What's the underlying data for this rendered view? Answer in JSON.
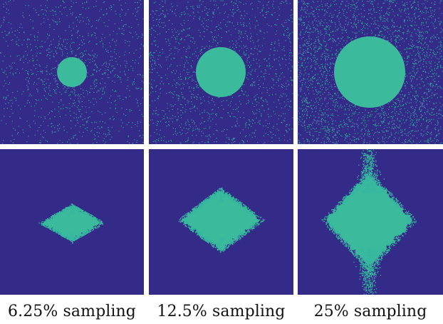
{
  "colors": {
    "background": "#342a88",
    "mask": "#3bba9c",
    "speckle": "#36b8a0"
  },
  "captions": {
    "col1": "6.25% sampling",
    "col2": "12.5% sampling",
    "col3": "25% sampling"
  },
  "panels": [
    {
      "row": "top",
      "column": "6.25% sampling",
      "pattern": "disc with random speckle",
      "sampling_percent": 6.25
    },
    {
      "row": "top",
      "column": "12.5% sampling",
      "pattern": "disc with random speckle",
      "sampling_percent": 12.5
    },
    {
      "row": "top",
      "column": "25% sampling",
      "pattern": "disc with random speckle",
      "sampling_percent": 25
    },
    {
      "row": "bottom",
      "column": "6.25% sampling",
      "pattern": "diamond with fuzzy edge",
      "sampling_percent": 6.25
    },
    {
      "row": "bottom",
      "column": "12.5% sampling",
      "pattern": "diamond with fuzzy edge",
      "sampling_percent": 12.5
    },
    {
      "row": "bottom",
      "column": "25% sampling",
      "pattern": "diamond with fuzzy edge",
      "sampling_percent": 25
    }
  ]
}
